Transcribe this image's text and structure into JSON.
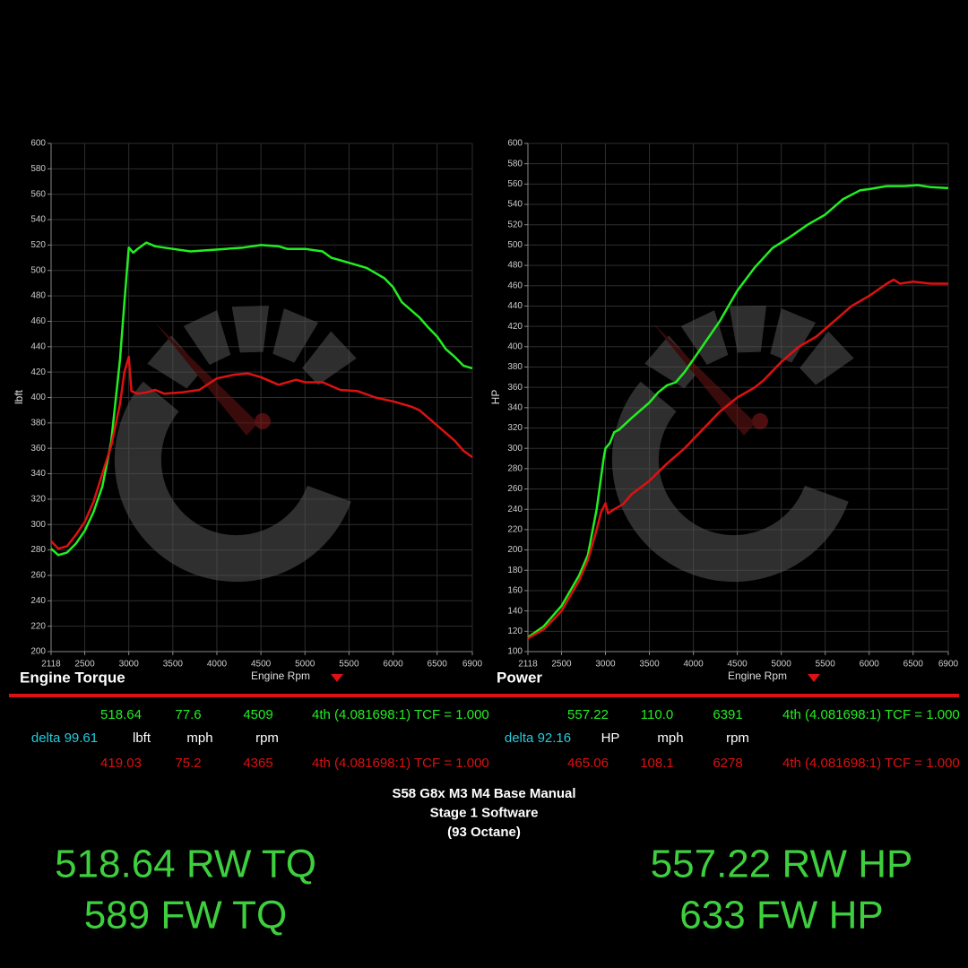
{
  "chart_data": [
    {
      "type": "line",
      "title": "Engine Torque",
      "xlabel": "Engine Rpm",
      "ylabel": "lbft",
      "xlim": [
        2118,
        6900
      ],
      "ylim": [
        200,
        600
      ],
      "xticks": [
        2118,
        2500,
        3000,
        3500,
        4000,
        4500,
        5000,
        5500,
        6000,
        6500,
        6900
      ],
      "yticks": [
        200,
        220,
        240,
        260,
        280,
        300,
        320,
        340,
        360,
        380,
        400,
        420,
        440,
        460,
        480,
        500,
        520,
        540,
        560,
        580,
        600
      ],
      "grid": true,
      "series": [
        {
          "color": "#22ee22",
          "x": [
            2118,
            2200,
            2300,
            2400,
            2500,
            2600,
            2700,
            2800,
            2900,
            2950,
            3000,
            3050,
            3100,
            3200,
            3300,
            3500,
            3700,
            3900,
            4100,
            4300,
            4500,
            4700,
            4800,
            5000,
            5200,
            5300,
            5500,
            5700,
            5900,
            6000,
            6100,
            6200,
            6300,
            6400,
            6500,
            6600,
            6700,
            6800,
            6900
          ],
          "values": [
            281,
            276,
            278,
            285,
            295,
            310,
            330,
            365,
            430,
            475,
            518,
            514,
            517,
            522,
            519,
            517,
            515,
            516,
            517,
            518,
            520,
            519,
            517,
            517,
            515,
            510,
            506,
            502,
            494,
            487,
            475,
            469,
            463,
            455,
            448,
            438,
            432,
            425,
            423
          ]
        },
        {
          "color": "#dd1111",
          "x": [
            2118,
            2200,
            2300,
            2400,
            2500,
            2600,
            2700,
            2800,
            2900,
            2950,
            3000,
            3030,
            3100,
            3200,
            3300,
            3400,
            3600,
            3800,
            4000,
            4200,
            4350,
            4500,
            4700,
            4900,
            5000,
            5200,
            5400,
            5600,
            5800,
            6000,
            6200,
            6300,
            6500,
            6700,
            6800,
            6900
          ],
          "values": [
            287,
            281,
            283,
            292,
            302,
            318,
            340,
            362,
            395,
            420,
            432,
            405,
            403,
            404,
            406,
            403,
            404,
            406,
            415,
            418,
            419,
            416,
            410,
            414,
            412,
            412,
            406,
            405,
            400,
            397,
            393,
            390,
            378,
            366,
            358,
            353
          ]
        }
      ]
    },
    {
      "type": "line",
      "title": "Power",
      "xlabel": "Engine Rpm",
      "ylabel": "HP",
      "xlim": [
        2118,
        6900
      ],
      "ylim": [
        100,
        600
      ],
      "xticks": [
        2118,
        2500,
        3000,
        3500,
        4000,
        4500,
        5000,
        5500,
        6000,
        6500,
        6900
      ],
      "yticks": [
        100,
        120,
        140,
        160,
        180,
        200,
        220,
        240,
        260,
        280,
        300,
        320,
        340,
        360,
        380,
        400,
        420,
        440,
        460,
        480,
        500,
        520,
        540,
        560,
        580,
        600
      ],
      "grid": true,
      "series": [
        {
          "color": "#22ee22",
          "x": [
            2118,
            2300,
            2500,
            2700,
            2800,
            2900,
            2980,
            3000,
            3050,
            3100,
            3150,
            3300,
            3500,
            3600,
            3700,
            3800,
            3900,
            4100,
            4300,
            4500,
            4700,
            4900,
            5100,
            5300,
            5500,
            5700,
            5900,
            6000,
            6200,
            6400,
            6550,
            6700,
            6900
          ],
          "values": [
            114,
            125,
            145,
            175,
            195,
            240,
            290,
            300,
            305,
            316,
            318,
            330,
            345,
            355,
            362,
            365,
            375,
            400,
            425,
            455,
            478,
            497,
            508,
            520,
            530,
            545,
            554,
            555,
            558,
            558,
            559,
            557,
            556
          ]
        },
        {
          "color": "#dd1111",
          "x": [
            2118,
            2300,
            2500,
            2700,
            2800,
            2900,
            2950,
            3000,
            3030,
            3100,
            3200,
            3300,
            3500,
            3700,
            3900,
            4100,
            4300,
            4500,
            4700,
            4800,
            5000,
            5200,
            5400,
            5600,
            5800,
            6000,
            6200,
            6280,
            6350,
            6500,
            6700,
            6900
          ],
          "values": [
            113,
            122,
            140,
            170,
            190,
            220,
            237,
            246,
            236,
            240,
            245,
            255,
            268,
            285,
            300,
            318,
            336,
            350,
            360,
            367,
            385,
            400,
            410,
            425,
            440,
            450,
            462,
            466,
            462,
            464,
            462,
            462
          ]
        }
      ]
    }
  ],
  "readouts": [
    {
      "rows": [
        [
          "518.64",
          "77.6",
          "4509",
          "4th (4.081698:1) TCF = 1.000"
        ],
        [
          "delta 99.61",
          "lbft",
          "mph",
          "rpm"
        ],
        [
          "419.03",
          "75.2",
          "4365",
          "4th (4.081698:1) TCF = 1.000"
        ]
      ]
    },
    {
      "rows": [
        [
          "557.22",
          "110.0",
          "6391",
          "4th (4.081698:1) TCF = 1.000"
        ],
        [
          "delta 92.16",
          "HP",
          "mph",
          "rpm"
        ],
        [
          "465.06",
          "108.1",
          "6278",
          "4th (4.081698:1) TCF = 1.000"
        ]
      ]
    }
  ],
  "title_block": [
    "S58 G8x M3 M4 Base Manual",
    "Stage 1 Software",
    "(93 Octane)"
  ],
  "summary": [
    [
      "518.64 RW TQ",
      "589 FW TQ"
    ],
    [
      "557.22 RW HP",
      "633 FW HP"
    ]
  ]
}
